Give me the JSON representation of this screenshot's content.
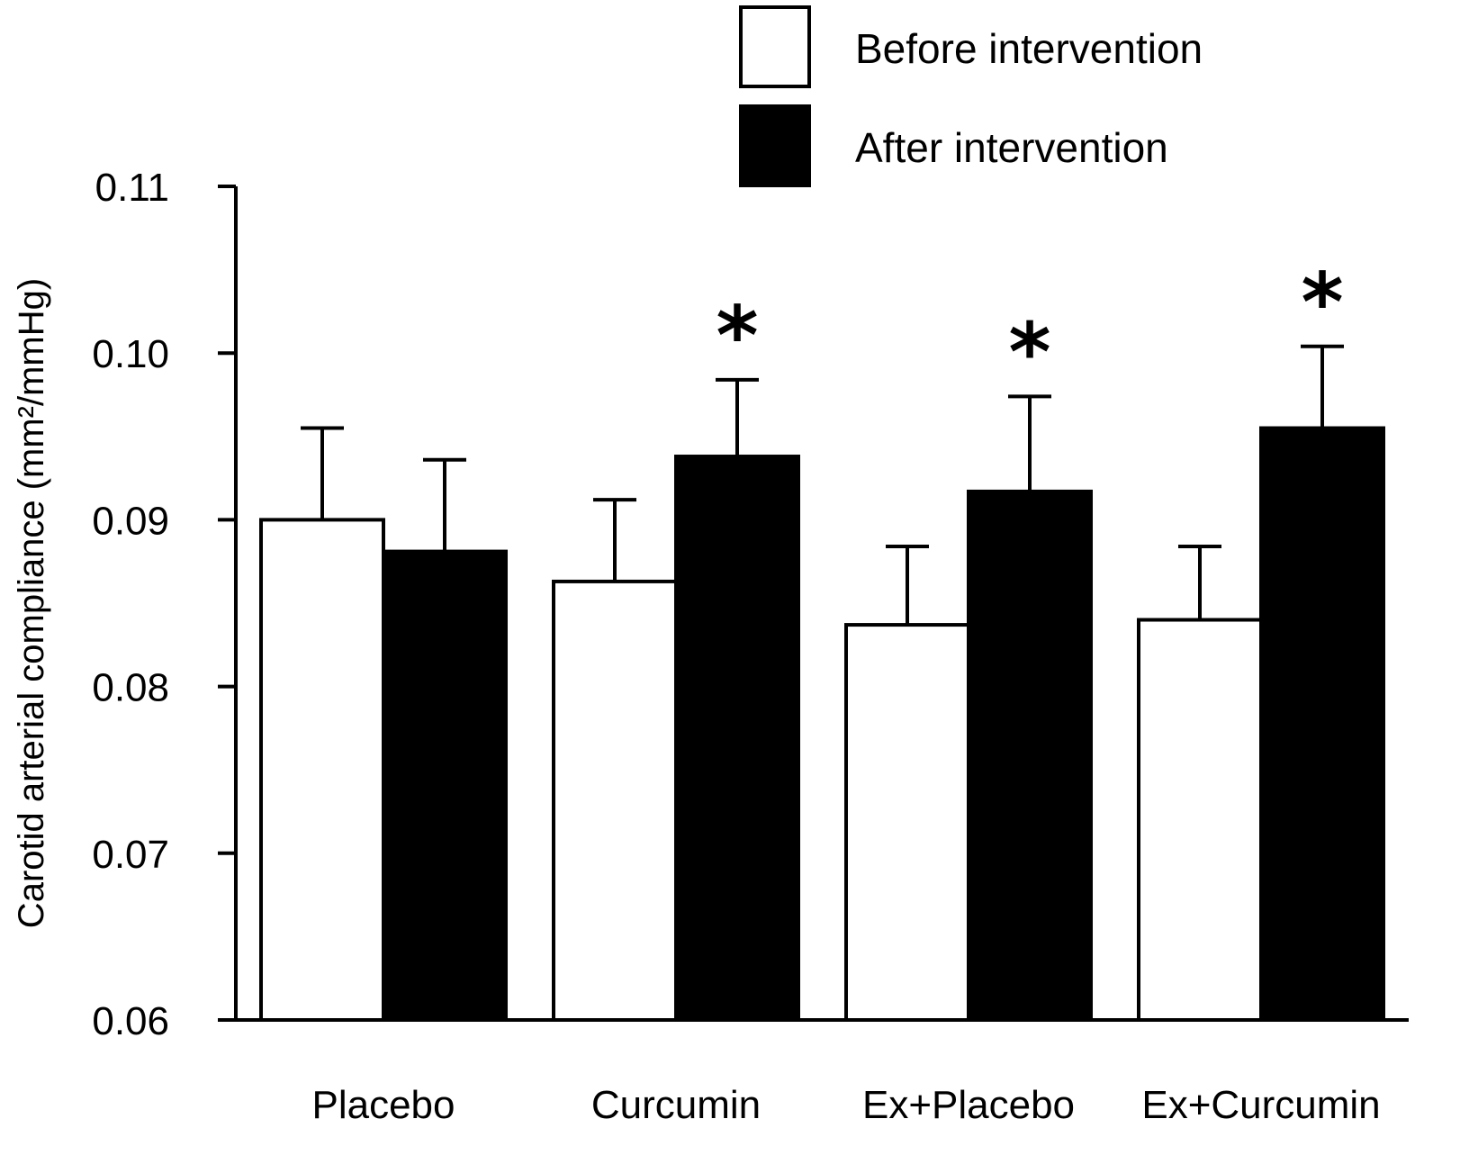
{
  "chart_data": {
    "type": "bar",
    "ylabel": "Carotid arterial compliance (mm²/mmHg)",
    "ylim": [
      0.06,
      0.11
    ],
    "yticks": [
      "0.06",
      "0.07",
      "0.08",
      "0.09",
      "0.10",
      "0.11"
    ],
    "categories": [
      "Placebo",
      "Curcumin",
      "Ex+Placebo",
      "Ex+Curcumin"
    ],
    "legend_position": "top-right",
    "series": [
      {
        "name": "Before intervention",
        "color": "#ffffff",
        "values": [
          0.09,
          0.0863,
          0.0837,
          0.084
        ],
        "error": [
          0.0055,
          0.0049,
          0.0047,
          0.0044
        ]
      },
      {
        "name": "After intervention",
        "color": "#000000",
        "values": [
          0.0881,
          0.0938,
          0.0917,
          0.0955
        ],
        "error": [
          0.0055,
          0.0046,
          0.0057,
          0.0049
        ]
      }
    ],
    "significance_marks": [
      {
        "category": "Curcumin",
        "series": "After intervention",
        "symbol": "*"
      },
      {
        "category": "Ex+Placebo",
        "series": "After intervention",
        "symbol": "*"
      },
      {
        "category": "Ex+Curcumin",
        "series": "After intervention",
        "symbol": "*"
      }
    ]
  }
}
